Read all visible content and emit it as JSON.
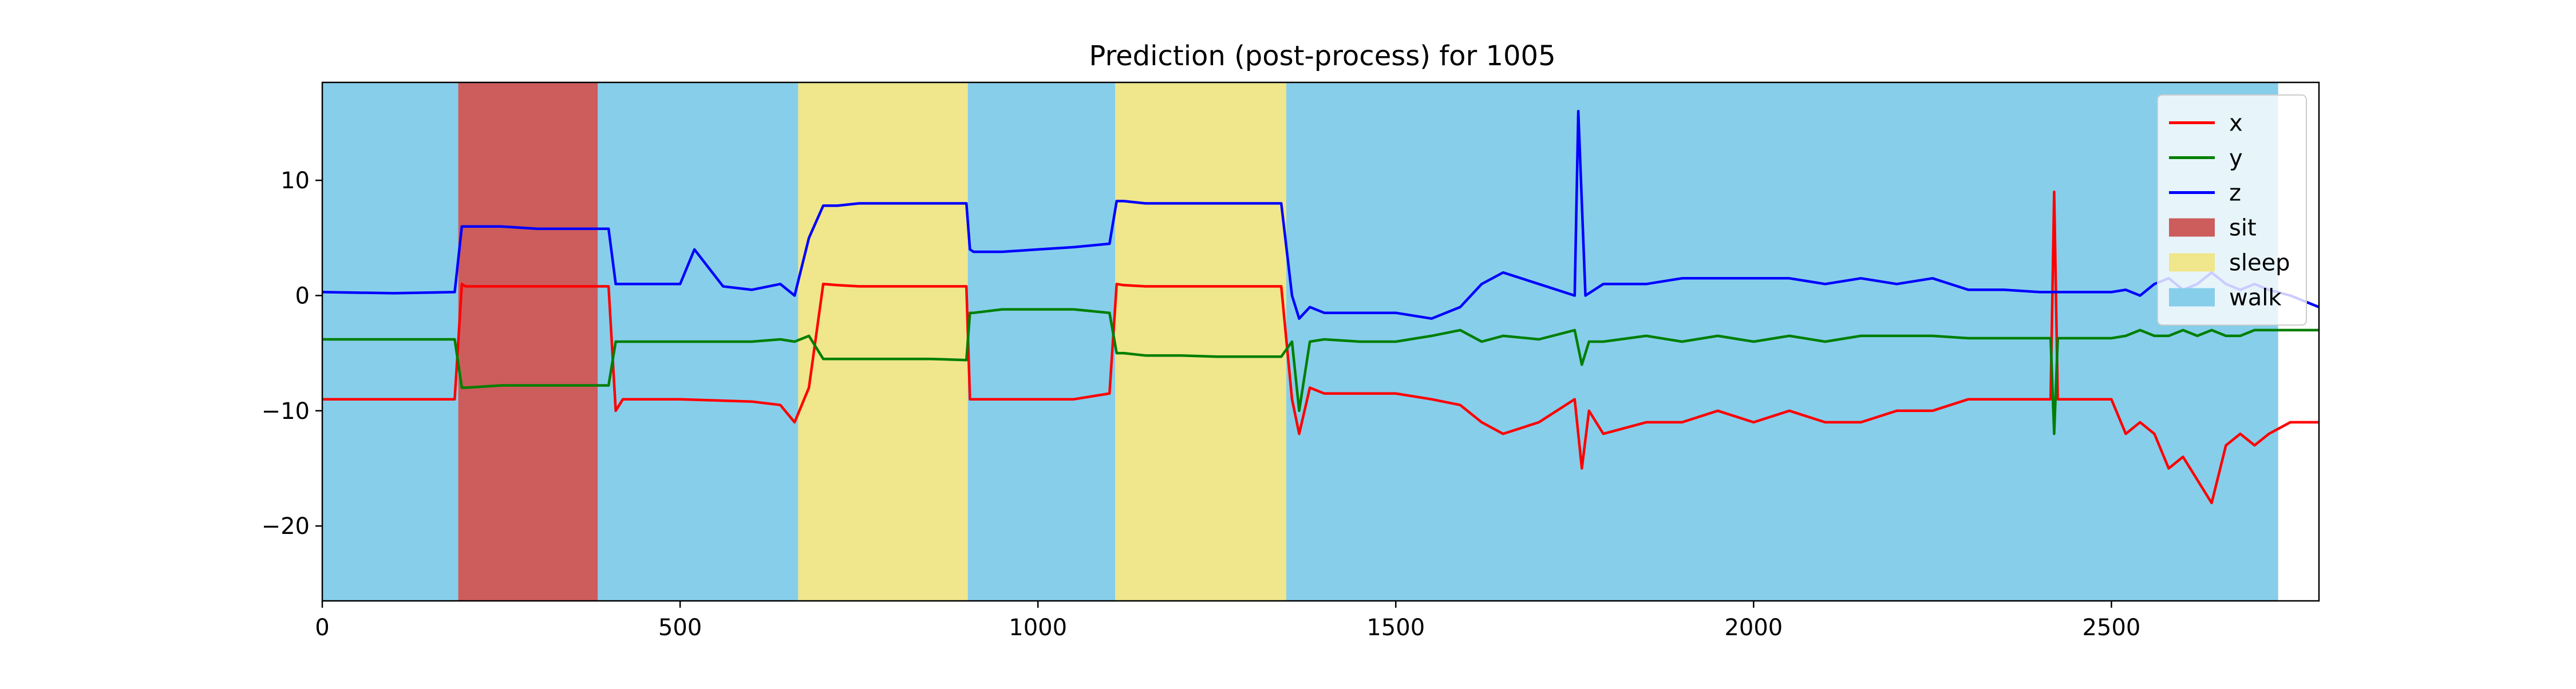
{
  "chart_data": {
    "type": "line",
    "title": "Prediction (post-process) for 1005",
    "xlabel": "",
    "ylabel": "",
    "xlim": [
      0,
      2790
    ],
    "ylim": [
      -26.5,
      18.5
    ],
    "x_ticks": [
      0,
      500,
      1000,
      1500,
      2000,
      2500
    ],
    "x_tick_labels": [
      "0",
      "500",
      "1000",
      "1500",
      "2000",
      "2500"
    ],
    "y_ticks": [
      10,
      0,
      -10,
      -20
    ],
    "y_tick_labels": [
      "10",
      "0",
      "−10",
      "−20"
    ],
    "grid": false,
    "legend_position": "top-right",
    "legend": [
      {
        "label": "x",
        "kind": "line",
        "color": "#ff0000"
      },
      {
        "label": "y",
        "kind": "line",
        "color": "#007f00"
      },
      {
        "label": "z",
        "kind": "line",
        "color": "#0000ff"
      },
      {
        "label": "sit",
        "kind": "patch",
        "color": "#cd5c5c"
      },
      {
        "label": "sleep",
        "kind": "patch",
        "color": "#f0e68c"
      },
      {
        "label": "walk",
        "kind": "patch",
        "color": "#87ceeb"
      }
    ],
    "regions": [
      {
        "label": "walk",
        "start": 0,
        "end": 190
      },
      {
        "label": "sit",
        "start": 190,
        "end": 385
      },
      {
        "label": "walk",
        "start": 385,
        "end": 665
      },
      {
        "label": "sleep",
        "start": 665,
        "end": 902
      },
      {
        "label": "walk",
        "start": 902,
        "end": 1108
      },
      {
        "label": "sleep",
        "start": 1108,
        "end": 1347
      },
      {
        "label": "walk",
        "start": 1347,
        "end": 2733
      }
    ],
    "series": [
      {
        "name": "x",
        "color": "#ff0000",
        "x": [
          0,
          100,
          185,
          195,
          200,
          250,
          300,
          350,
          400,
          410,
          420,
          500,
          600,
          640,
          660,
          680,
          700,
          720,
          750,
          800,
          850,
          900,
          905,
          910,
          950,
          1000,
          1050,
          1100,
          1110,
          1120,
          1150,
          1200,
          1250,
          1300,
          1340,
          1355,
          1365,
          1380,
          1400,
          1450,
          1500,
          1550,
          1590,
          1620,
          1650,
          1700,
          1750,
          1760,
          1770,
          1790,
          1850,
          1900,
          1950,
          2000,
          2050,
          2100,
          2150,
          2200,
          2250,
          2300,
          2350,
          2400,
          2415,
          2420,
          2425,
          2440,
          2500,
          2520,
          2540,
          2560,
          2580,
          2600,
          2620,
          2640,
          2660,
          2680,
          2700,
          2720,
          2750,
          2790
        ],
        "values": [
          -9,
          -9,
          -9,
          1,
          0.8,
          0.8,
          0.8,
          0.8,
          0.8,
          -10,
          -9,
          -9,
          -9.2,
          -9.5,
          -11,
          -8,
          1,
          0.9,
          0.8,
          0.8,
          0.8,
          0.8,
          -9,
          -9,
          -9,
          -9,
          -9,
          -8.5,
          1,
          0.9,
          0.8,
          0.8,
          0.8,
          0.8,
          0.8,
          -9,
          -12,
          -8,
          -8.5,
          -8.5,
          -8.5,
          -9,
          -9.5,
          -11,
          -12,
          -11,
          -9,
          -15,
          -10,
          -12,
          -11,
          -11,
          -10,
          -11,
          -10,
          -11,
          -11,
          -10,
          -10,
          -9,
          -9,
          -9,
          -9,
          9,
          -9,
          -9,
          -9,
          -12,
          -11,
          -12,
          -15,
          -14,
          -16,
          -18,
          -13,
          -12,
          -13,
          -12,
          -11,
          -11
        ]
      },
      {
        "name": "y",
        "color": "#007f00",
        "x": [
          0,
          100,
          185,
          195,
          200,
          250,
          300,
          350,
          400,
          410,
          420,
          500,
          600,
          640,
          660,
          680,
          700,
          720,
          750,
          800,
          850,
          900,
          905,
          910,
          950,
          1000,
          1050,
          1100,
          1110,
          1120,
          1150,
          1200,
          1250,
          1300,
          1340,
          1355,
          1365,
          1380,
          1400,
          1450,
          1500,
          1550,
          1590,
          1620,
          1650,
          1700,
          1750,
          1760,
          1770,
          1790,
          1850,
          1900,
          1950,
          2000,
          2050,
          2100,
          2150,
          2200,
          2250,
          2300,
          2350,
          2400,
          2415,
          2420,
          2425,
          2440,
          2500,
          2520,
          2540,
          2560,
          2580,
          2600,
          2620,
          2640,
          2660,
          2680,
          2700,
          2720,
          2750,
          2790
        ],
        "values": [
          -3.8,
          -3.8,
          -3.8,
          -8,
          -8,
          -7.8,
          -7.8,
          -7.8,
          -7.8,
          -4,
          -4,
          -4,
          -4,
          -3.8,
          -4,
          -3.5,
          -5.5,
          -5.5,
          -5.5,
          -5.5,
          -5.5,
          -5.6,
          -1.5,
          -1.5,
          -1.2,
          -1.2,
          -1.2,
          -1.5,
          -5,
          -5,
          -5.2,
          -5.2,
          -5.3,
          -5.3,
          -5.3,
          -4,
          -10,
          -4,
          -3.8,
          -4,
          -4,
          -3.5,
          -3,
          -4,
          -3.5,
          -3.8,
          -3,
          -6,
          -4,
          -4,
          -3.5,
          -4,
          -3.5,
          -4,
          -3.5,
          -4,
          -3.5,
          -3.5,
          -3.5,
          -3.7,
          -3.7,
          -3.7,
          -3.7,
          -12,
          -3.7,
          -3.7,
          -3.7,
          -3.5,
          -3,
          -3.5,
          -3.5,
          -3,
          -3.5,
          -3,
          -3.5,
          -3.5,
          -3,
          -3,
          -3,
          -3
        ]
      },
      {
        "name": "z",
        "color": "#0000ff",
        "x": [
          0,
          100,
          185,
          195,
          200,
          250,
          300,
          350,
          400,
          410,
          420,
          500,
          520,
          560,
          600,
          640,
          660,
          680,
          700,
          720,
          750,
          800,
          850,
          900,
          905,
          910,
          950,
          1000,
          1050,
          1100,
          1110,
          1120,
          1150,
          1200,
          1250,
          1300,
          1340,
          1355,
          1365,
          1380,
          1400,
          1450,
          1500,
          1550,
          1590,
          1620,
          1650,
          1700,
          1750,
          1755,
          1765,
          1790,
          1850,
          1900,
          1950,
          2000,
          2050,
          2100,
          2150,
          2200,
          2250,
          2300,
          2350,
          2400,
          2420,
          2440,
          2500,
          2520,
          2540,
          2560,
          2580,
          2600,
          2620,
          2640,
          2660,
          2680,
          2700,
          2720,
          2750,
          2790
        ],
        "values": [
          0.3,
          0.2,
          0.3,
          6,
          6,
          6,
          5.8,
          5.8,
          5.8,
          1,
          1,
          1,
          4,
          0.8,
          0.5,
          1,
          0,
          5,
          7.8,
          7.8,
          8,
          8,
          8,
          8,
          4,
          3.8,
          3.8,
          4,
          4.2,
          4.5,
          8.2,
          8.2,
          8,
          8,
          8,
          8,
          8,
          0,
          -2,
          -1,
          -1.5,
          -1.5,
          -1.5,
          -2,
          -1,
          1,
          2,
          1,
          0,
          16,
          0,
          1,
          1,
          1.5,
          1.5,
          1.5,
          1.5,
          1,
          1.5,
          1,
          1.5,
          0.5,
          0.5,
          0.3,
          0.3,
          0.3,
          0.3,
          0.5,
          0,
          1,
          1.5,
          0.5,
          1,
          2,
          1,
          0.5,
          1,
          0.5,
          0,
          -1
        ]
      }
    ]
  }
}
